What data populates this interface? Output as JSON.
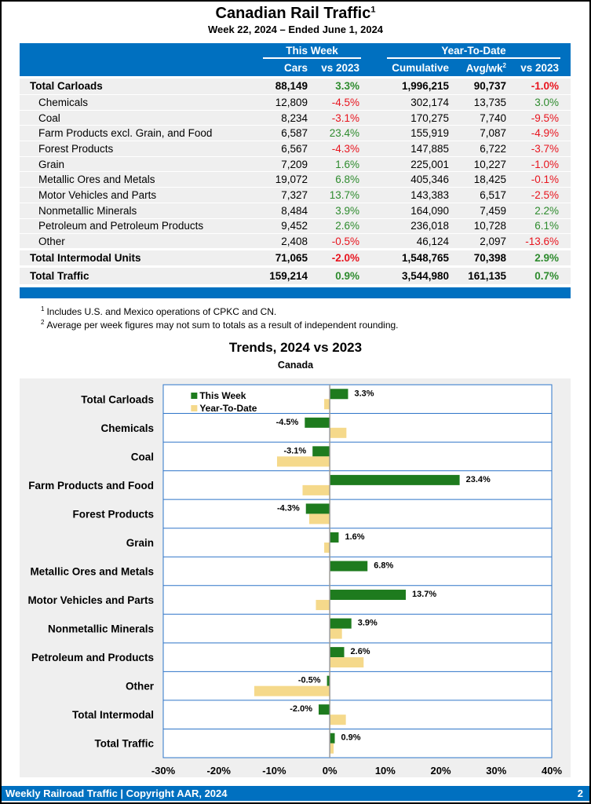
{
  "title": "Canadian Rail Traffic",
  "title_sup": "1",
  "subtitle": "Week 22, 2024 – Ended June 1, 2024",
  "table": {
    "group_this_week": "This Week",
    "group_ytd": "Year-To-Date",
    "cols": [
      "Cars",
      "vs 2023",
      "Cumulative",
      "Avg/wk",
      "vs 2023"
    ],
    "avg_sup": "2",
    "rows": [
      {
        "label": "Total Carloads",
        "bold": true,
        "cars": "88,149",
        "vs": "3.3%",
        "cum": "1,996,215",
        "avg": "90,737",
        "ytdvs": "-1.0%"
      },
      {
        "label": "Chemicals",
        "cars": "12,809",
        "vs": "-4.5%",
        "cum": "302,174",
        "avg": "13,735",
        "ytdvs": "3.0%"
      },
      {
        "label": "Coal",
        "cars": "8,234",
        "vs": "-3.1%",
        "cum": "170,275",
        "avg": "7,740",
        "ytdvs": "-9.5%"
      },
      {
        "label": "Farm Products excl. Grain, and Food",
        "cars": "6,587",
        "vs": "23.4%",
        "cum": "155,919",
        "avg": "7,087",
        "ytdvs": "-4.9%"
      },
      {
        "label": "Forest Products",
        "cars": "6,567",
        "vs": "-4.3%",
        "cum": "147,885",
        "avg": "6,722",
        "ytdvs": "-3.7%"
      },
      {
        "label": "Grain",
        "cars": "7,209",
        "vs": "1.6%",
        "cum": "225,001",
        "avg": "10,227",
        "ytdvs": "-1.0%"
      },
      {
        "label": "Metallic Ores and Metals",
        "cars": "19,072",
        "vs": "6.8%",
        "cum": "405,346",
        "avg": "18,425",
        "ytdvs": "-0.1%"
      },
      {
        "label": "Motor Vehicles and Parts",
        "cars": "7,327",
        "vs": "13.7%",
        "cum": "143,383",
        "avg": "6,517",
        "ytdvs": "-2.5%"
      },
      {
        "label": "Nonmetallic Minerals",
        "cars": "8,484",
        "vs": "3.9%",
        "cum": "164,090",
        "avg": "7,459",
        "ytdvs": "2.2%"
      },
      {
        "label": "Petroleum and Petroleum Products",
        "cars": "9,452",
        "vs": "2.6%",
        "cum": "236,018",
        "avg": "10,728",
        "ytdvs": "6.1%"
      },
      {
        "label": "Other",
        "cars": "2,408",
        "vs": "-0.5%",
        "cum": "46,124",
        "avg": "2,097",
        "ytdvs": "-13.6%"
      },
      {
        "label": "Total Intermodal Units",
        "bold": true,
        "cars": "71,065",
        "vs": "-2.0%",
        "cum": "1,548,765",
        "avg": "70,398",
        "ytdvs": "2.9%"
      },
      {
        "label": "Total Traffic",
        "bold": true,
        "cars": "159,214",
        "vs": "0.9%",
        "cum": "3,544,980",
        "avg": "161,135",
        "ytdvs": "0.7%"
      }
    ]
  },
  "footnotes": [
    {
      "sup": "1",
      "text": "Includes U.S. and Mexico operations of CPKC and CN."
    },
    {
      "sup": "2",
      "text": "Average per week figures may not sum to totals as a result of independent rounding."
    }
  ],
  "chart_data": {
    "type": "bar",
    "orientation": "horizontal",
    "title": "Trends, 2024 vs 2023",
    "subtitle": "Canada",
    "categories": [
      "Total Carloads",
      "Chemicals",
      "Coal",
      "Farm Products and Food",
      "Forest Products",
      "Grain",
      "Metallic Ores and Metals",
      "Motor Vehicles and Parts",
      "Nonmetallic Minerals",
      "Petroleum and Products",
      "Other",
      "Total Intermodal",
      "Total Traffic"
    ],
    "series": [
      {
        "name": "This Week",
        "color": "#1e7b1e",
        "values": [
          3.3,
          -4.5,
          -3.1,
          23.4,
          -4.3,
          1.6,
          6.8,
          13.7,
          3.9,
          2.6,
          -0.5,
          -2.0,
          0.9
        ],
        "labels": [
          "3.3%",
          "-4.5%",
          "-3.1%",
          "23.4%",
          "-4.3%",
          "1.6%",
          "6.8%",
          "13.7%",
          "3.9%",
          "2.6%",
          "-0.5%",
          "-2.0%",
          "0.9%"
        ]
      },
      {
        "name": "Year-To-Date",
        "color": "#f5d98b",
        "values": [
          -1.0,
          3.0,
          -9.5,
          -4.9,
          -3.7,
          -1.0,
          -0.1,
          -2.5,
          2.2,
          6.1,
          -13.6,
          2.9,
          0.7
        ]
      }
    ],
    "xlim": [
      -30,
      40
    ],
    "xticks": [
      "-30%",
      "-20%",
      "-10%",
      "0%",
      "10%",
      "20%",
      "30%",
      "40%"
    ],
    "legend": "top-left",
    "grid": true
  },
  "colors": {
    "brand": "#0070c0",
    "positive": "#2e8b2e",
    "negative": "#e8141e"
  },
  "footer": {
    "text": "Weekly Railroad Traffic | Copyright AAR, 2024",
    "page": "2"
  }
}
